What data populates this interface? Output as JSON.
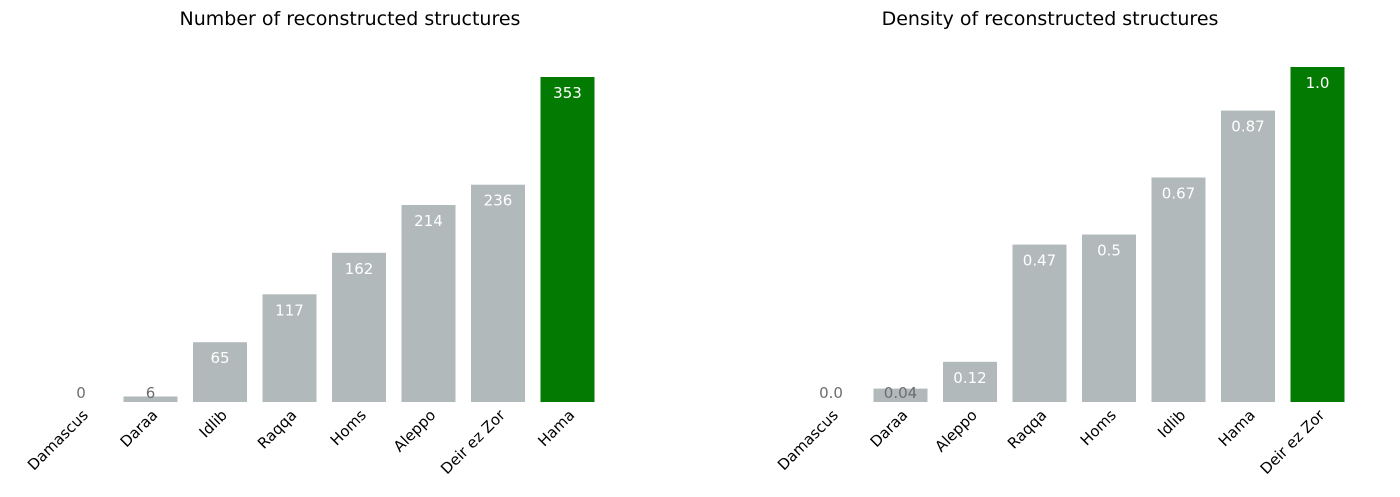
{
  "colors": {
    "default_bar": "#b2b9ba",
    "highlight_bar": "#037b03",
    "label_inside": "#ffffff",
    "label_outside": "#6d6d6d",
    "tick_text": "#000000"
  },
  "chart_data": [
    {
      "type": "bar",
      "title": "Number of reconstructed structures",
      "xlabel": "",
      "ylabel": "",
      "ylim": [
        0,
        353
      ],
      "grid": false,
      "categories": [
        "Damascus",
        "Daraa",
        "Idlib",
        "Raqqa",
        "Homs",
        "Aleppo",
        "Deir ez Zor",
        "Hama"
      ],
      "values": [
        0,
        6,
        65,
        117,
        162,
        214,
        236,
        353
      ],
      "value_labels": [
        "0",
        "6",
        "65",
        "117",
        "162",
        "214",
        "236",
        "353"
      ],
      "highlight": "Hama"
    },
    {
      "type": "bar",
      "title": "Density of reconstructed structures",
      "xlabel": "",
      "ylabel": "",
      "ylim": [
        0,
        1.0
      ],
      "grid": false,
      "categories": [
        "Damascus",
        "Daraa",
        "Aleppo",
        "Raqqa",
        "Homs",
        "Idlib",
        "Hama",
        "Deir ez Zor"
      ],
      "values": [
        0.0,
        0.04,
        0.12,
        0.47,
        0.5,
        0.67,
        0.87,
        1.0
      ],
      "value_labels": [
        "0.0",
        "0.04",
        "0.12",
        "0.47",
        "0.5",
        "0.67",
        "0.87",
        "1.0"
      ],
      "highlight": "Deir ez Zor"
    }
  ]
}
